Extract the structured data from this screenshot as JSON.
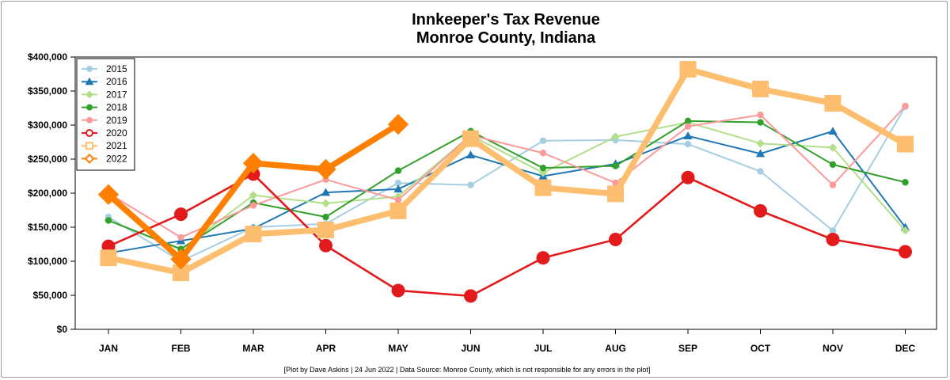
{
  "chart_data": {
    "type": "line",
    "title": "Innkeeper's Tax Revenue",
    "subtitle": "Monroe County, Indiana",
    "caption": "[Plot by Dave Askins | 24 Jun 2022 | Data Source: Monroe County, which is not responsible for any errors in the plot]",
    "xlabel": "",
    "ylabel": "",
    "categories": [
      "JAN",
      "FEB",
      "MAR",
      "APR",
      "MAY",
      "JUN",
      "JUL",
      "AUG",
      "SEP",
      "OCT",
      "NOV",
      "DEC"
    ],
    "ylim": [
      0,
      400000
    ],
    "yticks": [
      0,
      50000,
      100000,
      150000,
      200000,
      250000,
      300000,
      350000,
      400000
    ],
    "ytick_labels": [
      "$0",
      "$50,000",
      "$100,000",
      "$150,000",
      "$200,000",
      "$250,000",
      "$300,000",
      "$350,000",
      "$400,000"
    ],
    "grid": false,
    "legend_position": "top-left",
    "series": [
      {
        "name": "2015",
        "color": "#a6cee3",
        "marker": "circle",
        "emphasis": "normal",
        "values": [
          165000,
          100000,
          150000,
          155000,
          215000,
          212000,
          277000,
          278000,
          272000,
          232000,
          145000,
          327000
        ]
      },
      {
        "name": "2016",
        "color": "#1f78b4",
        "marker": "triangle",
        "emphasis": "normal",
        "values": [
          112000,
          130000,
          148000,
          201000,
          206000,
          256000,
          225000,
          243000,
          284000,
          258000,
          291000,
          150000
        ]
      },
      {
        "name": "2017",
        "color": "#b2df8a",
        "marker": "diamond",
        "emphasis": "normal",
        "values": [
          160000,
          117000,
          197000,
          185000,
          195000,
          285000,
          230000,
          283000,
          304000,
          273000,
          267000,
          145000
        ]
      },
      {
        "name": "2018",
        "color": "#33a02c",
        "marker": "circle",
        "emphasis": "normal",
        "values": [
          160000,
          118000,
          186000,
          165000,
          233000,
          291000,
          237000,
          240000,
          306000,
          304000,
          242000,
          216000
        ]
      },
      {
        "name": "2019",
        "color": "#fb9a99",
        "marker": "circle",
        "emphasis": "normal",
        "values": [
          200000,
          135000,
          182000,
          220000,
          190000,
          285000,
          259000,
          215000,
          298000,
          315000,
          212000,
          328000
        ]
      },
      {
        "name": "2020",
        "color": "#e31a1c",
        "marker": "circle-large",
        "emphasis": "medium",
        "values": [
          122000,
          169000,
          228000,
          123000,
          57000,
          49000,
          105000,
          132000,
          223000,
          174000,
          132000,
          114000
        ]
      },
      {
        "name": "2021",
        "color": "#fdbf6f",
        "marker": "square",
        "emphasis": "thick",
        "values": [
          105000,
          83000,
          140000,
          146000,
          174000,
          280000,
          208000,
          199000,
          382000,
          353000,
          332000,
          272000
        ]
      },
      {
        "name": "2022",
        "color": "#ff7f00",
        "marker": "diamond-large",
        "emphasis": "thick",
        "values": [
          198000,
          103000,
          244000,
          235000,
          301000,
          null,
          null,
          null,
          null,
          null,
          null,
          null
        ]
      }
    ]
  }
}
